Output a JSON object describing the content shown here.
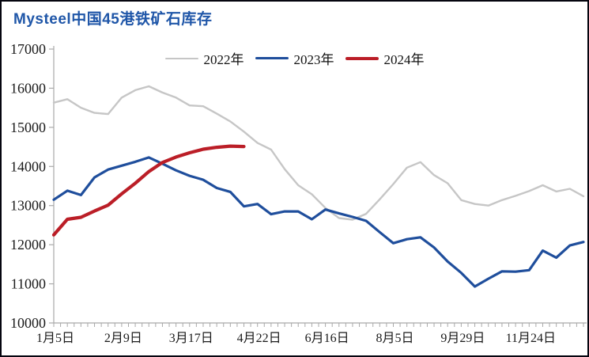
{
  "chart_data": {
    "type": "line",
    "title": "Mysteel中国45港铁矿石库存",
    "xlabel": "",
    "ylabel": "",
    "ylim": [
      10000,
      17000
    ],
    "y_ticks": [
      17000,
      16000,
      15000,
      14000,
      13000,
      12000,
      11000,
      10000
    ],
    "x_tick_labels": [
      "1月5日",
      "2月9日",
      "3月17日",
      "4月22日",
      "6月16日",
      "8月5日",
      "9月29日",
      "11月24日"
    ],
    "x_label_indices": [
      0,
      5,
      10,
      15,
      20,
      25,
      30,
      35
    ],
    "n_points": 40,
    "minor_tick_count": 79,
    "grid": false,
    "legend_position": "top-center",
    "axis_color": "#a9a9a9",
    "text_color": "#1a1a1a",
    "title_color": "#1f56a8",
    "series": [
      {
        "name": "2022年",
        "color": "#c6c6c6",
        "line_width": 2.4,
        "values": [
          15630,
          15720,
          15500,
          15370,
          15340,
          15760,
          15950,
          16050,
          15890,
          15760,
          15560,
          15540,
          15350,
          15150,
          14890,
          14600,
          14430,
          13930,
          13520,
          13290,
          12940,
          12680,
          12640,
          12790,
          13160,
          13550,
          13970,
          14110,
          13780,
          13570,
          13140,
          13040,
          13000,
          13140,
          13250,
          13370,
          13520,
          13360,
          13430,
          13240
        ]
      },
      {
        "name": "2023年",
        "color": "#1f4e9c",
        "line_width": 3.2,
        "values": [
          13150,
          13380,
          13270,
          13720,
          13920,
          14020,
          14120,
          14230,
          14070,
          13900,
          13760,
          13660,
          13450,
          13350,
          12980,
          13040,
          12780,
          12850,
          12850,
          12650,
          12900,
          12800,
          12710,
          12610,
          12320,
          12040,
          12140,
          12190,
          11930,
          11570,
          11280,
          10930,
          11130,
          11320,
          11310,
          11350,
          11850,
          11670,
          11980,
          12070
        ]
      },
      {
        "name": "2024年",
        "color": "#bb1e27",
        "line_width": 4.2,
        "values": [
          12250,
          12650,
          12700,
          12860,
          13010,
          13300,
          13570,
          13870,
          14100,
          14240,
          14350,
          14440,
          14490,
          14520,
          14510
        ]
      }
    ]
  }
}
